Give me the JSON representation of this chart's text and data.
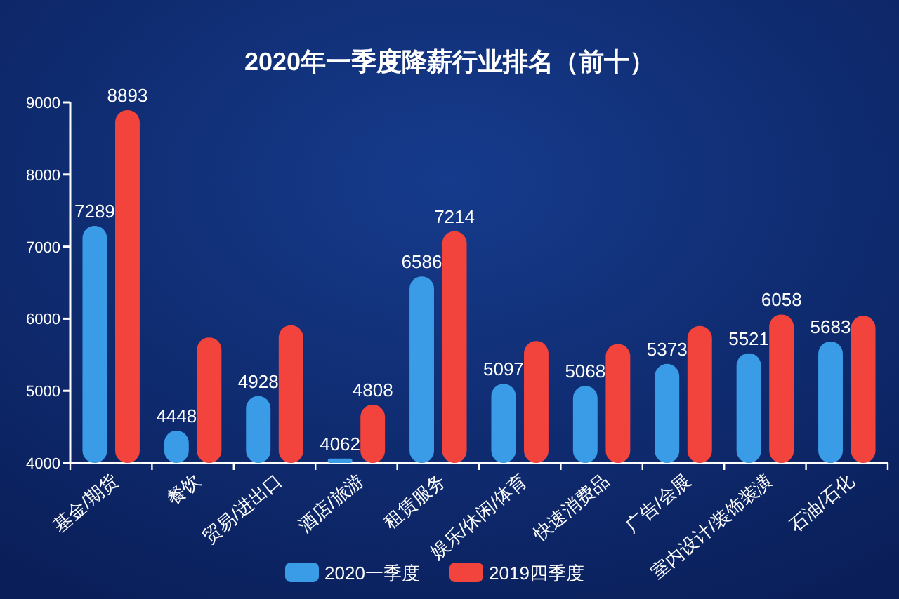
{
  "chart_data": {
    "type": "bar",
    "title": "2020年一季度降薪行业排名（前十）",
    "categories": [
      "基金/期货",
      "餐饮",
      "贸易/进出口",
      "酒店/旅游",
      "租赁服务",
      "娱乐/休闲/体育",
      "快速消费品",
      "广告/会展",
      "室内设计/装饰装潢",
      "石油/石化"
    ],
    "series": [
      {
        "name": "2020一季度",
        "color": "#3a9be6",
        "values": [
          7289,
          4448,
          4928,
          4062,
          6586,
          5097,
          5068,
          5373,
          5521,
          5683
        ],
        "value_labels": [
          "7289",
          "4448",
          "4928",
          "4062",
          "6586",
          "5097",
          "5068",
          "5373",
          "5521",
          "5683"
        ]
      },
      {
        "name": "2019四季度",
        "color": "#f2433d",
        "values": [
          8893,
          5740,
          5910,
          4808,
          7214,
          5690,
          5650,
          5900,
          6058,
          6040
        ],
        "value_labels": [
          "8893",
          null,
          null,
          "4808",
          "7214",
          null,
          null,
          null,
          "6058",
          null
        ]
      }
    ],
    "ylim": [
      4000,
      9000
    ],
    "yticks": [
      4000,
      5000,
      6000,
      7000,
      8000,
      9000
    ],
    "legend": "bottom",
    "grid": false
  }
}
